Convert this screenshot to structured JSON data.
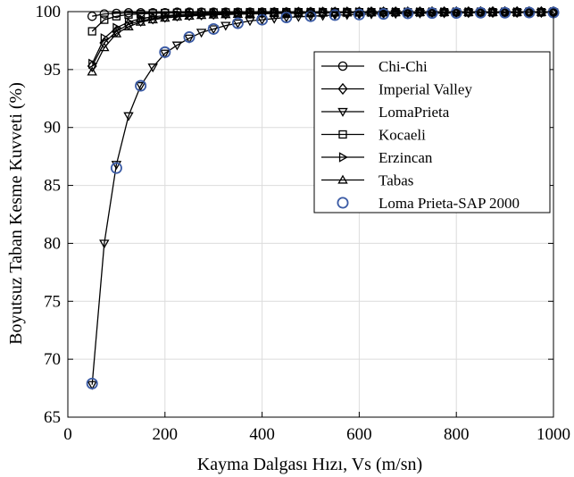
{
  "chart_data": {
    "type": "line",
    "title": "",
    "xlabel": "Kayma Dalgası Hızı, Vs (m/sn)",
    "ylabel": "Boyutsuz Taban Kesme Kuvveti (%)",
    "xlim": [
      0,
      1000
    ],
    "ylim": [
      65,
      100
    ],
    "xticks": [
      "0",
      "200",
      "400",
      "600",
      "800",
      "1000"
    ],
    "yticks": [
      "65",
      "70",
      "75",
      "80",
      "85",
      "90",
      "95",
      "100"
    ],
    "grid": true,
    "legend_position": "top-right",
    "x": [
      50,
      75,
      100,
      125,
      150,
      175,
      200,
      225,
      250,
      275,
      300,
      325,
      350,
      375,
      400,
      425,
      450,
      475,
      500,
      525,
      550,
      575,
      600,
      625,
      650,
      675,
      700,
      725,
      750,
      775,
      800,
      825,
      850,
      875,
      900,
      925,
      950,
      975,
      1000
    ],
    "series": [
      {
        "name": "Chi-Chi",
        "marker": "circle",
        "values": [
          99.6,
          99.8,
          99.85,
          99.9,
          99.9,
          99.9,
          99.9,
          99.95,
          99.95,
          99.95,
          99.95,
          99.95,
          99.95,
          99.95,
          99.95,
          99.95,
          99.95,
          99.95,
          99.95,
          99.95,
          99.95,
          99.95,
          99.95,
          99.95,
          99.95,
          99.95,
          99.95,
          99.95,
          99.95,
          99.95,
          99.95,
          99.95,
          99.95,
          99.95,
          99.95,
          99.95,
          99.95,
          99.95,
          99.95
        ]
      },
      {
        "name": "Imperial Valley",
        "marker": "diamond",
        "values": [
          95.3,
          97.3,
          98.3,
          98.9,
          99.2,
          99.4,
          99.55,
          99.65,
          99.7,
          99.75,
          99.8,
          99.82,
          99.85,
          99.87,
          99.88,
          99.9,
          99.9,
          99.92,
          99.92,
          99.93,
          99.93,
          99.94,
          99.94,
          99.95,
          99.95,
          99.95,
          99.95,
          99.95,
          99.96,
          99.96,
          99.96,
          99.96,
          99.97,
          99.97,
          99.97,
          99.97,
          99.97,
          99.97,
          99.97
        ]
      },
      {
        "name": "LomaPrieta",
        "marker": "triangle-down",
        "values": [
          67.8,
          80.0,
          86.8,
          91.0,
          93.6,
          95.2,
          96.4,
          97.1,
          97.7,
          98.2,
          98.5,
          98.8,
          99.0,
          99.2,
          99.3,
          99.4,
          99.5,
          99.55,
          99.6,
          99.65,
          99.7,
          99.72,
          99.75,
          99.78,
          99.8,
          99.82,
          99.84,
          99.85,
          99.86,
          99.87,
          99.88,
          99.89,
          99.9,
          99.9,
          99.91,
          99.91,
          99.92,
          99.92,
          99.93
        ]
      },
      {
        "name": "Kocaeli",
        "marker": "square",
        "values": [
          98.3,
          99.3,
          99.6,
          99.75,
          99.8,
          99.85,
          99.88,
          99.9,
          99.9,
          99.92,
          99.92,
          99.93,
          99.93,
          99.94,
          99.94,
          99.95,
          99.95,
          99.95,
          99.95,
          99.95,
          99.95,
          99.95,
          99.95,
          99.95,
          99.95,
          99.95,
          99.95,
          99.95,
          99.95,
          99.95,
          99.95,
          99.95,
          99.95,
          99.95,
          99.95,
          99.95,
          99.95,
          99.95,
          99.95
        ]
      },
      {
        "name": "Erzincan",
        "marker": "triangle-right",
        "values": [
          95.5,
          97.7,
          98.6,
          99.1,
          99.4,
          99.55,
          99.65,
          99.72,
          99.78,
          99.82,
          99.85,
          99.87,
          99.88,
          99.9,
          99.9,
          99.92,
          99.92,
          99.93,
          99.93,
          99.94,
          99.94,
          99.94,
          99.95,
          99.95,
          99.95,
          99.95,
          99.95,
          99.95,
          99.95,
          99.95,
          99.95,
          99.95,
          99.95,
          99.95,
          99.95,
          99.95,
          99.95,
          99.95,
          99.95
        ]
      },
      {
        "name": "Tabas",
        "marker": "triangle-up",
        "values": [
          94.8,
          96.9,
          98.1,
          98.7,
          99.1,
          99.3,
          99.45,
          99.55,
          99.62,
          99.68,
          99.72,
          99.75,
          99.78,
          99.8,
          99.82,
          99.84,
          99.85,
          99.86,
          99.87,
          99.88,
          99.89,
          99.9,
          99.9,
          99.91,
          99.91,
          99.92,
          99.92,
          99.93,
          99.93,
          99.93,
          99.94,
          99.94,
          99.94,
          99.94,
          99.95,
          99.95,
          99.95,
          99.95,
          99.95
        ]
      }
    ],
    "overlay_series": {
      "name": "Loma Prieta-SAP 2000",
      "marker": "circle",
      "color": "#3b5ba5",
      "x": [
        50,
        100,
        150,
        200,
        250,
        300,
        350,
        400,
        450,
        500,
        550,
        600,
        650,
        700,
        750,
        800,
        850,
        900,
        950,
        1000
      ],
      "values": [
        67.9,
        86.5,
        93.6,
        96.5,
        97.8,
        98.5,
        99.0,
        99.3,
        99.5,
        99.6,
        99.7,
        99.75,
        99.8,
        99.85,
        99.87,
        99.88,
        99.9,
        99.9,
        99.92,
        99.92
      ]
    }
  }
}
